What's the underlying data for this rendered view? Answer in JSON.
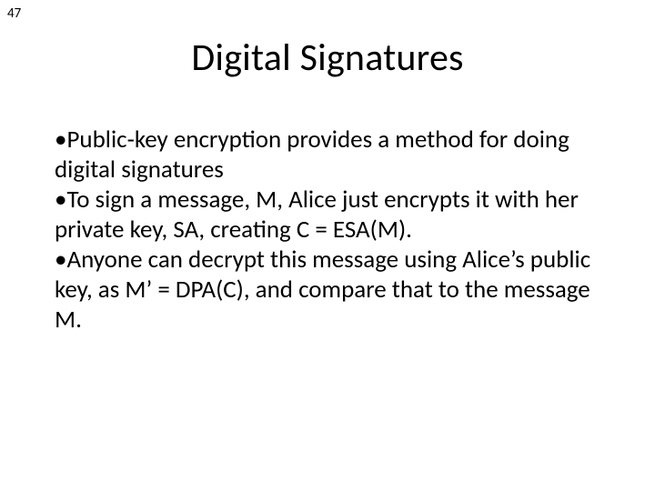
{
  "page_number": "47",
  "title": "Digital Signatures",
  "bullets": {
    "b1": "•Public-key encryption provides a method for doing digital signatures",
    "b2": "•To sign a message, M, Alice just encrypts it with her private key, SA, creating C = ESA(M).",
    "b3": "•Anyone can decrypt this message using Alice’s public key, as M’ = DPA(C), and compare that to the message M."
  },
  "style": {
    "background_color": "#ffffff",
    "text_color": "#000000",
    "title_fontsize": 42,
    "body_fontsize": 27,
    "page_number_fontsize": 15,
    "font_family": "Calibri"
  }
}
